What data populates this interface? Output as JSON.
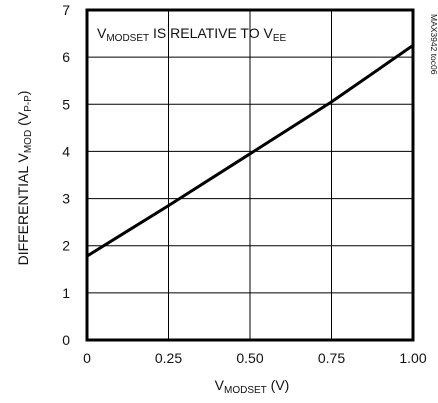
{
  "chart_data": {
    "type": "line",
    "title": "",
    "xlabel": {
      "main": "V",
      "sub": "MODSET",
      "tail": " (V)"
    },
    "ylabel": {
      "pre": "DIFFERENTIAL V",
      "sub1": "MOD",
      "mid": " (V",
      "sub2": "P-P",
      "tail": ")"
    },
    "xlim": [
      0,
      1.0
    ],
    "ylim": [
      0,
      7
    ],
    "x_ticks": [
      0,
      0.25,
      0.5,
      0.75,
      1.0
    ],
    "x_tick_labels": [
      "0",
      "0.25",
      "0.50",
      "0.75",
      "1.00"
    ],
    "y_ticks": [
      0,
      1,
      2,
      3,
      4,
      5,
      6,
      7
    ],
    "y_tick_labels": [
      "0",
      "1",
      "2",
      "3",
      "4",
      "5",
      "6",
      "7"
    ],
    "grid": true,
    "series": [
      {
        "x": [
          0,
          0.25,
          0.5,
          0.75,
          1.0
        ],
        "y": [
          1.78,
          2.85,
          3.95,
          5.05,
          6.25
        ],
        "color": "#000000"
      }
    ],
    "annotation": {
      "a": "V",
      "b": "MODSET",
      "c": " IS RELATIVE TO V",
      "d": "EE"
    },
    "part_code": "MAX3942 toc06"
  }
}
